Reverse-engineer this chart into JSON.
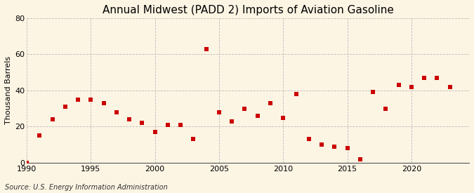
{
  "title": "Annual Midwest (PADD 2) Imports of Aviation Gasoline",
  "ylabel": "Thousand Barrels",
  "source": "Source: U.S. Energy Information Administration",
  "background_color": "#fdf5e4",
  "plot_bg_color": "#fdf5e4",
  "marker_color": "#cc0000",
  "grid_color": "#bbbbbb",
  "spine_color": "#555555",
  "xlim": [
    1990,
    2024.5
  ],
  "ylim": [
    0,
    80
  ],
  "yticks": [
    0,
    20,
    40,
    60,
    80
  ],
  "xticks": [
    1990,
    1995,
    2000,
    2005,
    2010,
    2015,
    2020
  ],
  "years": [
    1990,
    1991,
    1992,
    1993,
    1994,
    1995,
    1996,
    1997,
    1998,
    1999,
    2000,
    2001,
    2002,
    2003,
    2004,
    2005,
    2006,
    2007,
    2008,
    2009,
    2010,
    2011,
    2012,
    2013,
    2014,
    2015,
    2016,
    2017,
    2018,
    2019,
    2020,
    2021,
    2022,
    2023
  ],
  "values": [
    0,
    15,
    24,
    31,
    35,
    35,
    33,
    28,
    24,
    22,
    17,
    21,
    21,
    13,
    63,
    28,
    23,
    30,
    26,
    33,
    25,
    38,
    13,
    10,
    9,
    8,
    2,
    39,
    30,
    43,
    42,
    47,
    47,
    42
  ],
  "title_fontsize": 11,
  "axis_fontsize": 8,
  "source_fontsize": 7,
  "marker_size": 20
}
